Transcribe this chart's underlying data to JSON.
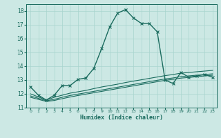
{
  "bg_color": "#cce8e4",
  "grid_color": "#a8d4ce",
  "line_color": "#1a6b5e",
  "xlabel": "Humidex (Indice chaleur)",
  "xlim": [
    -0.5,
    23.5
  ],
  "ylim": [
    11,
    18.5
  ],
  "yticks": [
    11,
    12,
    13,
    14,
    15,
    16,
    17,
    18
  ],
  "xticks": [
    0,
    1,
    2,
    3,
    4,
    5,
    6,
    7,
    8,
    9,
    10,
    11,
    12,
    13,
    14,
    15,
    16,
    17,
    18,
    19,
    20,
    21,
    22,
    23
  ],
  "series": [
    {
      "x": [
        0,
        1,
        2,
        3,
        4,
        5,
        6,
        7,
        8,
        9,
        10,
        11,
        12,
        13,
        14,
        15,
        16,
        17,
        18,
        19,
        20,
        21,
        22,
        23
      ],
      "y": [
        12.5,
        11.9,
        11.55,
        11.9,
        12.6,
        12.6,
        13.05,
        13.15,
        13.85,
        15.3,
        16.85,
        17.85,
        18.1,
        17.5,
        17.1,
        17.1,
        16.5,
        13.0,
        12.75,
        13.55,
        13.2,
        13.3,
        13.4,
        13.2
      ],
      "marker": "x",
      "lw": 1.0
    },
    {
      "x": [
        0,
        2,
        3,
        4,
        5,
        6,
        7,
        8,
        9,
        10,
        11,
        12,
        13,
        14,
        15,
        16,
        17,
        18,
        19,
        20,
        21,
        22,
        23
      ],
      "y": [
        12.0,
        11.55,
        11.75,
        11.9,
        12.05,
        12.15,
        12.25,
        12.38,
        12.5,
        12.6,
        12.7,
        12.82,
        12.92,
        13.02,
        13.12,
        13.22,
        13.32,
        13.4,
        13.5,
        13.55,
        13.6,
        13.65,
        13.7
      ],
      "marker": null,
      "lw": 0.8
    },
    {
      "x": [
        0,
        2,
        3,
        4,
        5,
        6,
        7,
        8,
        9,
        10,
        11,
        12,
        13,
        14,
        15,
        16,
        17,
        18,
        19,
        20,
        21,
        22,
        23
      ],
      "y": [
        11.85,
        11.5,
        11.6,
        11.75,
        11.88,
        11.98,
        12.08,
        12.18,
        12.28,
        12.38,
        12.48,
        12.58,
        12.68,
        12.78,
        12.88,
        12.98,
        13.08,
        13.15,
        13.25,
        13.3,
        13.35,
        13.4,
        13.45
      ],
      "marker": null,
      "lw": 0.8
    },
    {
      "x": [
        0,
        2,
        3,
        4,
        5,
        6,
        7,
        8,
        9,
        10,
        11,
        12,
        13,
        14,
        15,
        16,
        17,
        18,
        19,
        20,
        21,
        22,
        23
      ],
      "y": [
        11.75,
        11.45,
        11.52,
        11.65,
        11.77,
        11.88,
        11.98,
        12.08,
        12.18,
        12.28,
        12.38,
        12.48,
        12.58,
        12.68,
        12.78,
        12.88,
        12.98,
        13.05,
        13.14,
        13.19,
        13.24,
        13.3,
        13.35
      ],
      "marker": null,
      "lw": 0.8
    }
  ]
}
